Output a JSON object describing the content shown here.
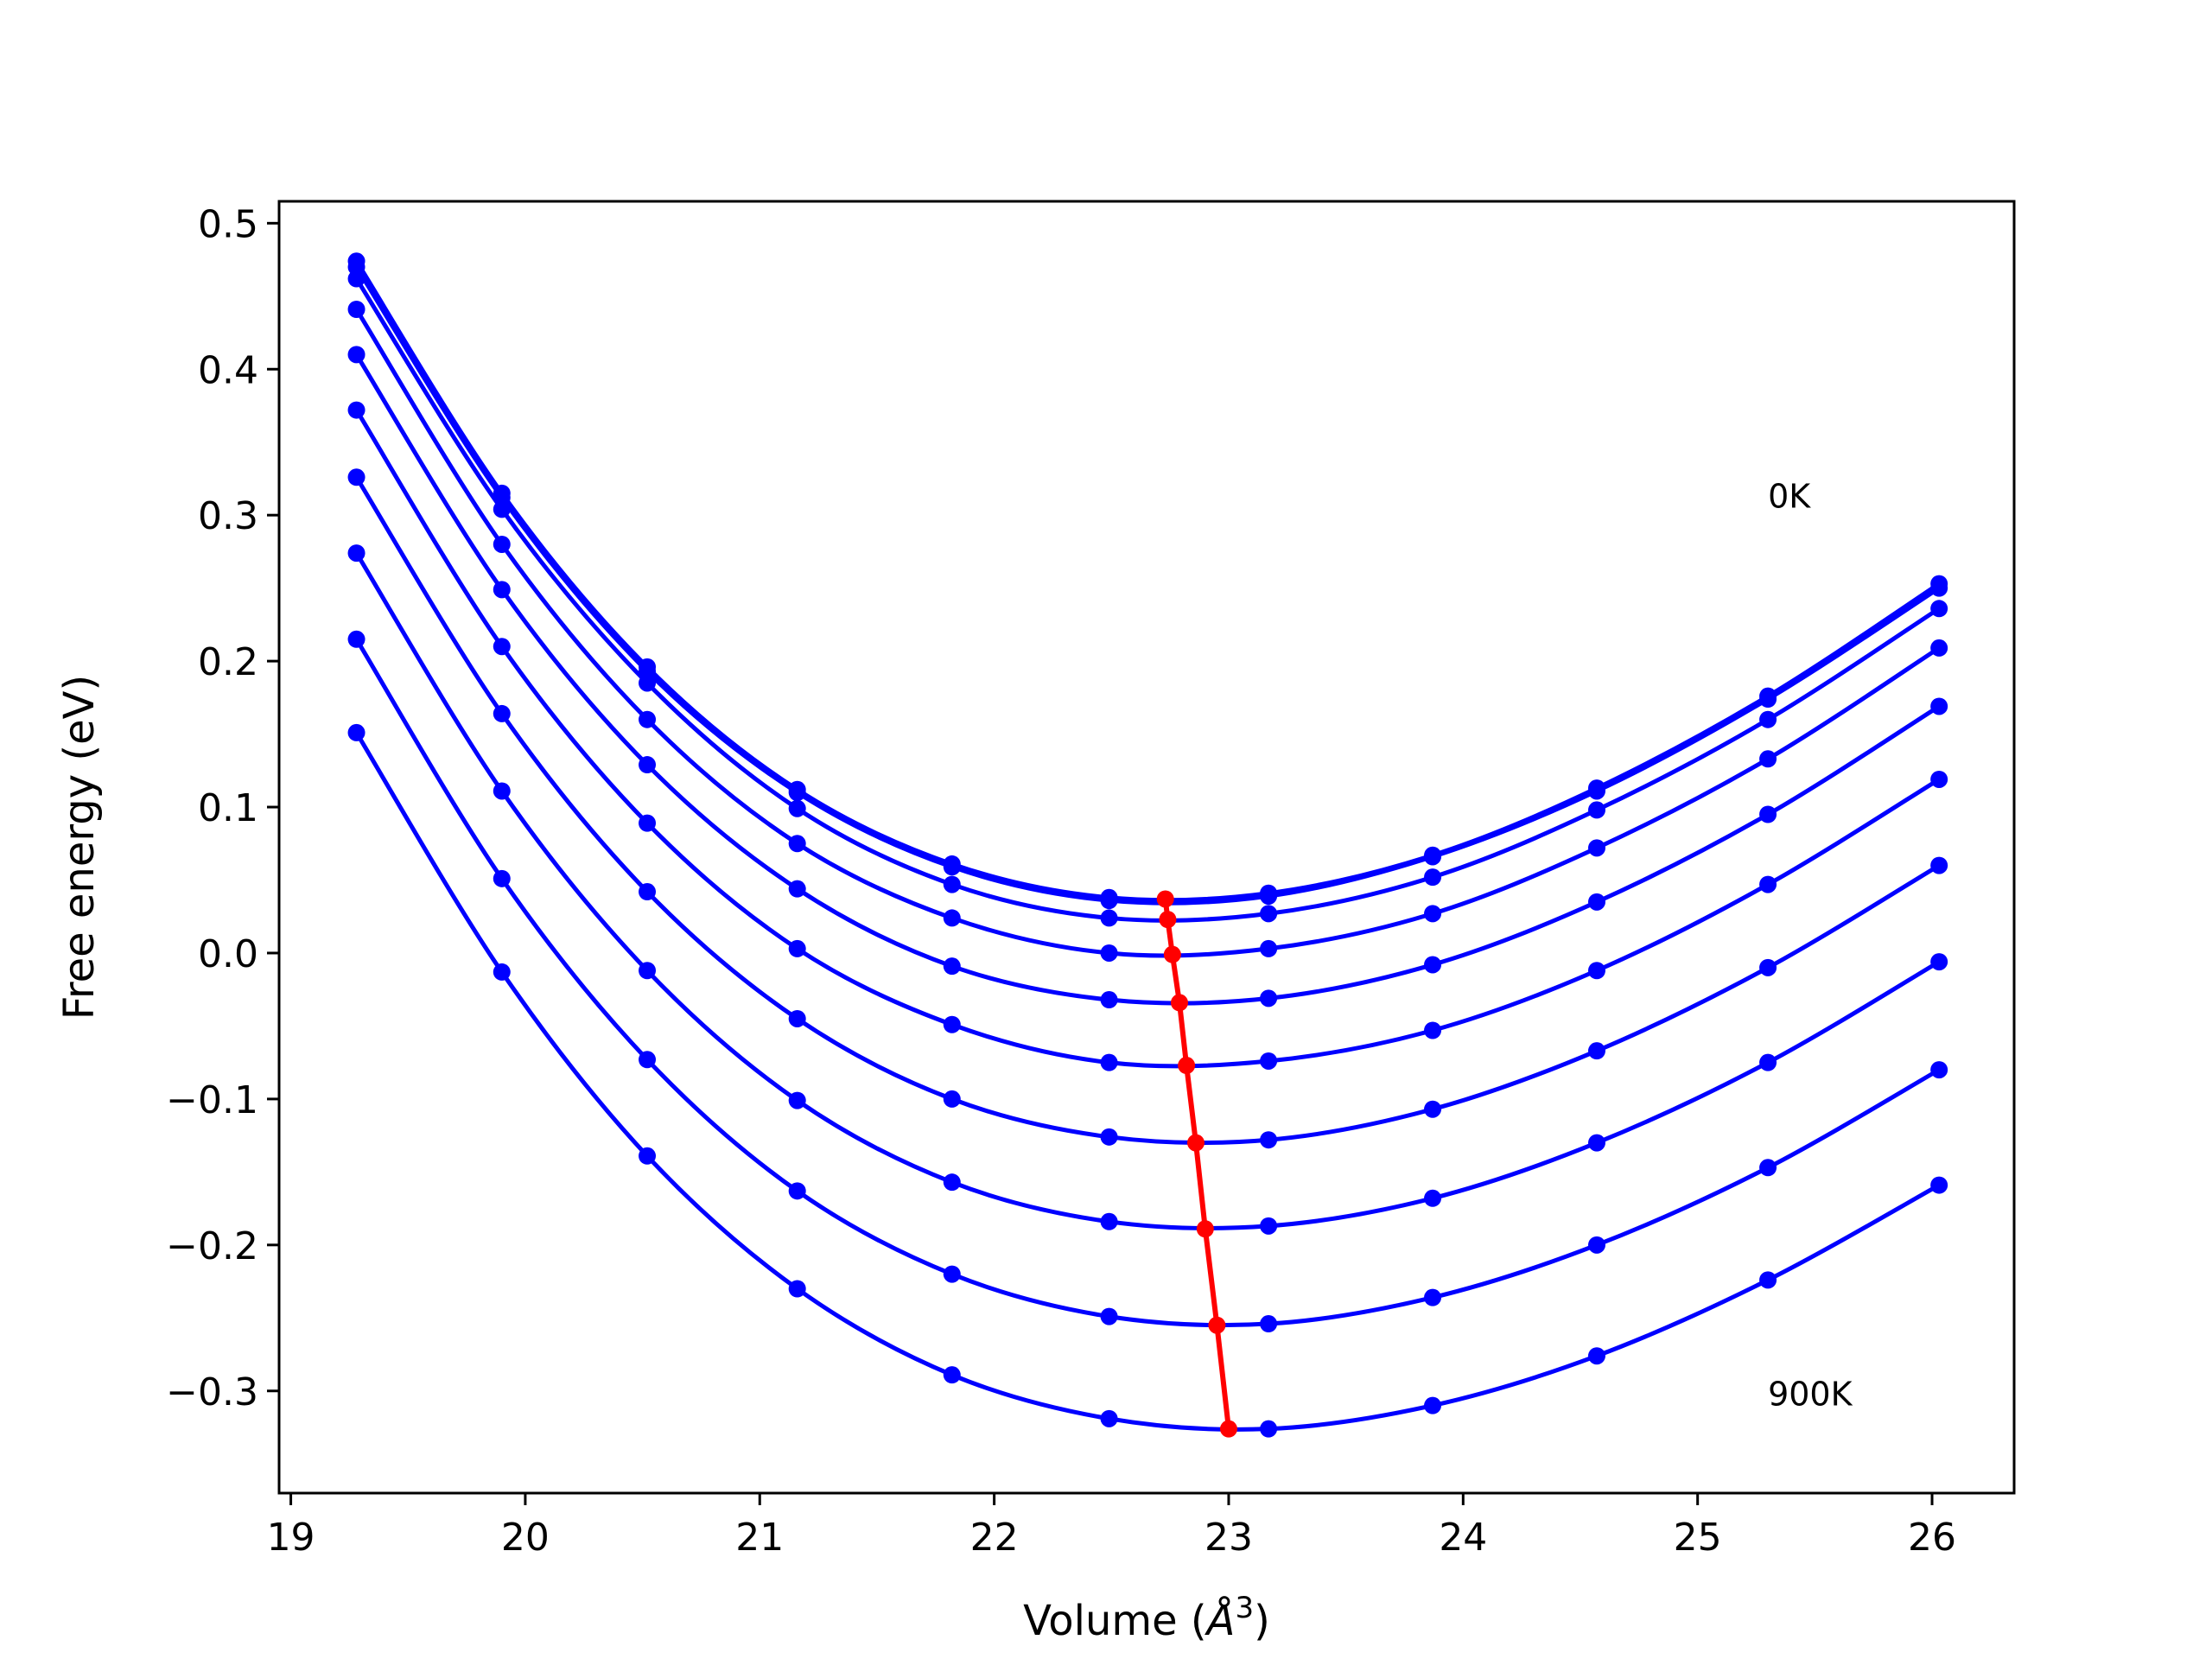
{
  "chart_data": {
    "type": "line",
    "xlabel": "Volume (",
    "xlabel_unit": "Å",
    "xlabel_exp": "3",
    "xlabel_close": ")",
    "ylabel": "Free energy (eV)",
    "xlim": [
      18.95,
      26.35
    ],
    "ylim": [
      -0.37,
      0.515
    ],
    "xticks": [
      19,
      20,
      21,
      22,
      23,
      24,
      25,
      26
    ],
    "xtick_labels": [
      "19",
      "20",
      "21",
      "22",
      "23",
      "24",
      "25",
      "26"
    ],
    "yticks": [
      -0.3,
      -0.2,
      -0.1,
      0.0,
      0.1,
      0.2,
      0.3,
      0.4,
      0.5
    ],
    "ytick_labels": [
      "−0.3",
      "−0.2",
      "−0.1",
      "0.0",
      "0.1",
      "0.2",
      "0.3",
      "0.4",
      "0.5"
    ],
    "grid": false,
    "colors": {
      "curves": "#0000ff",
      "minima": "#ff0000"
    },
    "x": [
      19.28,
      19.9,
      20.52,
      21.16,
      21.82,
      22.49,
      23.17,
      23.87,
      24.57,
      25.3,
      26.03
    ],
    "series": [
      {
        "values": [
          0.474,
          0.315,
          0.196,
          0.112,
          0.061,
          0.038,
          0.041,
          0.067,
          0.113,
          0.176,
          0.253
        ]
      },
      {
        "values": [
          0.47,
          0.312,
          0.193,
          0.11,
          0.059,
          0.036,
          0.039,
          0.066,
          0.111,
          0.174,
          0.25
        ]
      },
      {
        "values": [
          0.462,
          0.304,
          0.185,
          0.099,
          0.047,
          0.024,
          0.027,
          0.052,
          0.098,
          0.16,
          0.236
        ]
      },
      {
        "values": [
          0.441,
          0.28,
          0.16,
          0.075,
          0.024,
          0.0,
          0.003,
          0.027,
          0.072,
          0.133,
          0.209
        ]
      },
      {
        "values": [
          0.41,
          0.249,
          0.129,
          0.044,
          -0.009,
          -0.032,
          -0.031,
          -0.008,
          0.035,
          0.095,
          0.169
        ]
      },
      {
        "values": [
          0.372,
          0.21,
          0.089,
          0.003,
          -0.049,
          -0.075,
          -0.074,
          -0.053,
          -0.012,
          0.047,
          0.119
        ]
      },
      {
        "values": [
          0.326,
          0.164,
          0.042,
          -0.045,
          -0.1,
          -0.126,
          -0.128,
          -0.107,
          -0.067,
          -0.01,
          0.06
        ]
      },
      {
        "values": [
          0.274,
          0.111,
          -0.012,
          -0.101,
          -0.157,
          -0.184,
          -0.187,
          -0.168,
          -0.13,
          -0.075,
          -0.006
        ]
      },
      {
        "values": [
          0.215,
          0.051,
          -0.073,
          -0.163,
          -0.22,
          -0.249,
          -0.254,
          -0.236,
          -0.2,
          -0.147,
          -0.08
        ]
      },
      {
        "values": [
          0.151,
          -0.013,
          -0.139,
          -0.23,
          -0.289,
          -0.319,
          -0.326,
          -0.31,
          -0.276,
          -0.224,
          -0.159
        ]
      }
    ],
    "minima": {
      "x": [
        22.73,
        22.74,
        22.76,
        22.79,
        22.82,
        22.86,
        22.9,
        22.95,
        23.0
      ],
      "y": [
        0.037,
        0.023,
        -0.001,
        -0.034,
        -0.077,
        -0.13,
        -0.189,
        -0.255,
        -0.326
      ]
    },
    "annotations": [
      "0K",
      "900K"
    ]
  }
}
